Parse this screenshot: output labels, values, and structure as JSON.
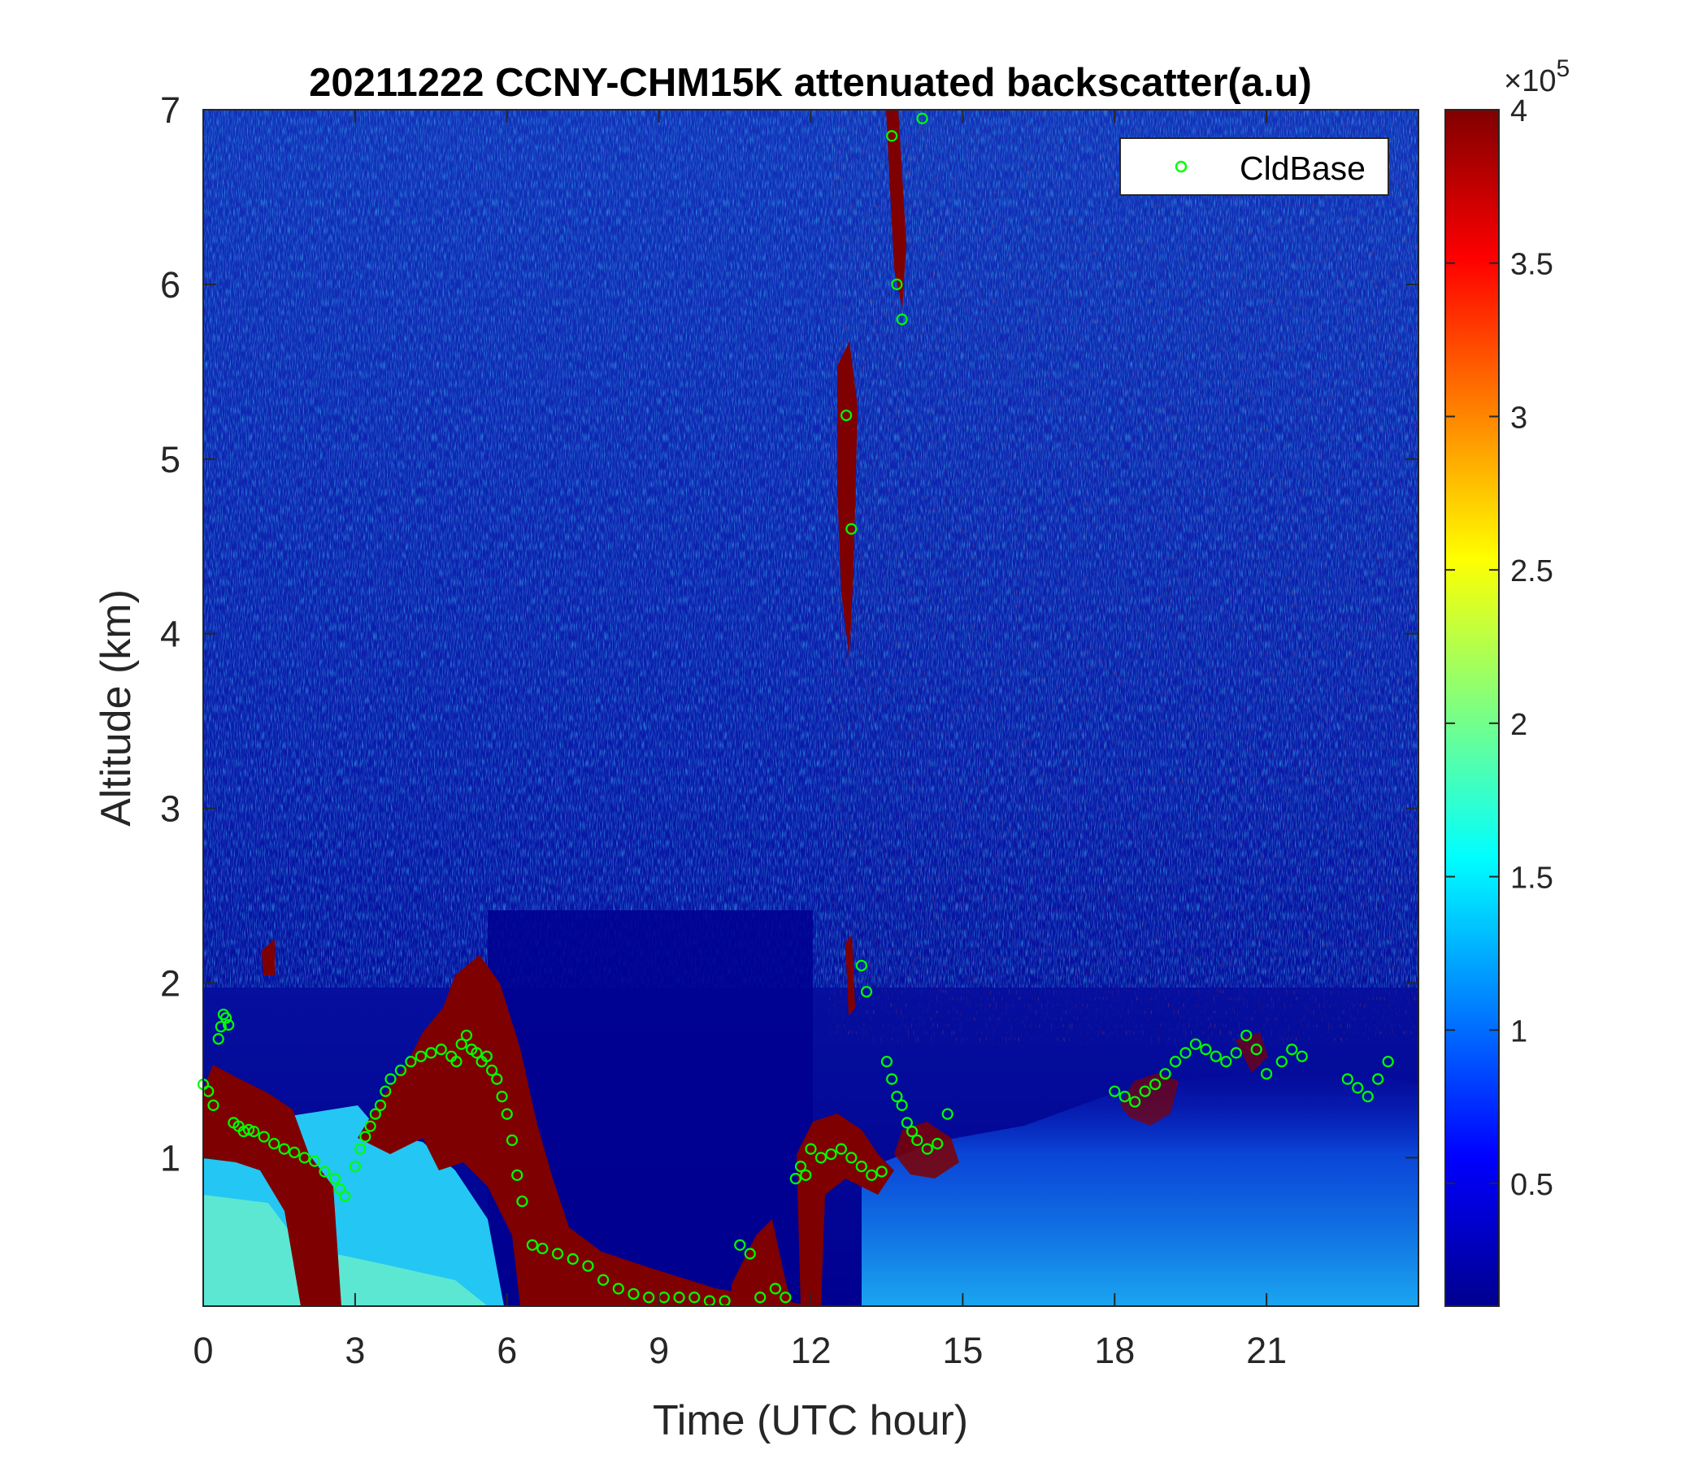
{
  "chart_data": {
    "type": "heatmap",
    "title": "20211222 CCNY-CHM15K attenuated backscatter(a.u)",
    "xlabel": "Time (UTC hour)",
    "ylabel": "Altitude (km)",
    "xlim": [
      0,
      24
    ],
    "ylim": [
      0.15,
      7
    ],
    "x_ticks": [
      "0",
      "3",
      "6",
      "9",
      "12",
      "15",
      "18",
      "21"
    ],
    "y_ticks": [
      "1",
      "2",
      "3",
      "4",
      "5",
      "6",
      "7"
    ],
    "colorbar": {
      "colormap": "jet",
      "range": [
        0.1,
        4
      ],
      "ticks": [
        "0.5",
        "1",
        "1.5",
        "2",
        "2.5",
        "3",
        "3.5",
        "4"
      ],
      "exponent_label": "×10",
      "exponent_power": "5"
    },
    "legend": {
      "position": "top-right",
      "entries": [
        "CldBase"
      ]
    },
    "marker_color": "#00ff00",
    "series": [
      {
        "name": "CldBase",
        "marker": "circle",
        "x": [
          0.0,
          0.1,
          0.2,
          0.3,
          0.35,
          0.4,
          0.45,
          0.5,
          0.6,
          0.7,
          0.8,
          0.9,
          1.0,
          1.2,
          1.4,
          1.6,
          1.8,
          2.0,
          2.2,
          2.4,
          2.6,
          2.7,
          2.8,
          3.0,
          3.1,
          3.2,
          3.3,
          3.4,
          3.5,
          3.6,
          3.7,
          3.9,
          4.1,
          4.3,
          4.5,
          4.7,
          4.9,
          5.0,
          5.1,
          5.2,
          5.3,
          5.4,
          5.5,
          5.6,
          5.7,
          5.8,
          5.9,
          6.0,
          6.1,
          6.2,
          6.3,
          6.5,
          6.7,
          7.0,
          7.3,
          7.6,
          7.9,
          8.2,
          8.5,
          8.8,
          9.1,
          9.4,
          9.7,
          10.0,
          10.3,
          10.6,
          10.8,
          11.0,
          11.3,
          11.5,
          11.7,
          11.8,
          11.9,
          12.0,
          12.2,
          12.4,
          12.6,
          12.8,
          13.0,
          13.2,
          13.4,
          13.5,
          13.6,
          13.7,
          13.8,
          13.9,
          14.0,
          14.1,
          14.3,
          14.5,
          14.7,
          13.6,
          13.7,
          13.8,
          13.0,
          13.1,
          12.7,
          12.8,
          14.2,
          18.0,
          18.2,
          18.4,
          18.6,
          18.8,
          19.0,
          19.2,
          19.4,
          19.6,
          19.8,
          20.0,
          20.2,
          20.4,
          20.6,
          20.8,
          21.0,
          21.3,
          21.5,
          21.7,
          22.6,
          22.8,
          23.0,
          23.2,
          23.4
        ],
        "y": [
          1.42,
          1.38,
          1.3,
          1.68,
          1.75,
          1.82,
          1.8,
          1.76,
          1.2,
          1.18,
          1.15,
          1.16,
          1.15,
          1.12,
          1.08,
          1.05,
          1.03,
          1.0,
          0.98,
          0.92,
          0.88,
          0.82,
          0.78,
          0.95,
          1.05,
          1.12,
          1.18,
          1.25,
          1.3,
          1.38,
          1.45,
          1.5,
          1.55,
          1.58,
          1.6,
          1.62,
          1.58,
          1.55,
          1.65,
          1.7,
          1.62,
          1.6,
          1.55,
          1.58,
          1.5,
          1.45,
          1.35,
          1.25,
          1.1,
          0.9,
          0.75,
          0.5,
          0.48,
          0.45,
          0.42,
          0.38,
          0.3,
          0.25,
          0.22,
          0.2,
          0.2,
          0.2,
          0.2,
          0.18,
          0.18,
          0.5,
          0.45,
          0.2,
          0.25,
          0.2,
          0.88,
          0.95,
          0.9,
          1.05,
          1.0,
          1.02,
          1.05,
          1.0,
          0.95,
          0.9,
          0.92,
          1.55,
          1.45,
          1.35,
          1.3,
          1.2,
          1.15,
          1.1,
          1.05,
          1.08,
          1.25,
          6.85,
          6.0,
          5.8,
          2.1,
          1.95,
          5.25,
          4.6,
          6.95,
          1.38,
          1.35,
          1.32,
          1.38,
          1.42,
          1.48,
          1.55,
          1.6,
          1.65,
          1.62,
          1.58,
          1.55,
          1.6,
          1.7,
          1.62,
          1.48,
          1.55,
          1.62,
          1.58,
          1.45,
          1.4,
          1.35,
          1.45,
          1.55
        ]
      }
    ]
  }
}
